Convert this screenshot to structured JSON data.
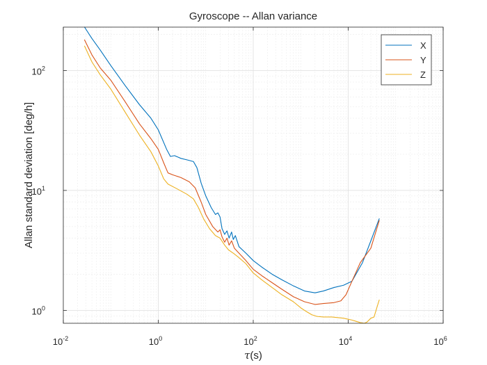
{
  "chart_data": {
    "type": "line",
    "title": "Gyroscope -- Allan variance",
    "xlabel": {
      "symbol": "τ",
      "text": "(s)"
    },
    "ylabel": "Allan standard deviation [deg/h]",
    "xscale": "log",
    "yscale": "log",
    "xlim": [
      0.01,
      1000000
    ],
    "ylim": [
      0.78,
      230
    ],
    "grid": true,
    "minor_grid": true,
    "legend": "top-right",
    "x_ticks": [
      {
        "base": "10",
        "exp": "-2",
        "value": 0.01
      },
      {
        "base": "10",
        "exp": "0",
        "value": 1
      },
      {
        "base": "10",
        "exp": "2",
        "value": 100
      },
      {
        "base": "10",
        "exp": "4",
        "value": 10000
      },
      {
        "base": "10",
        "exp": "6",
        "value": 1000000
      }
    ],
    "y_ticks": [
      {
        "base": "10",
        "exp": "0",
        "value": 1
      },
      {
        "base": "10",
        "exp": "1",
        "value": 10
      },
      {
        "base": "10",
        "exp": "2",
        "value": 100
      }
    ],
    "series": [
      {
        "name": "X",
        "color": "#0072BD",
        "points": [
          [
            0.028,
            230
          ],
          [
            0.04,
            185
          ],
          [
            0.06,
            148
          ],
          [
            0.1,
            110
          ],
          [
            0.2,
            75
          ],
          [
            0.4,
            52
          ],
          [
            0.7,
            40
          ],
          [
            1.0,
            32
          ],
          [
            1.5,
            22
          ],
          [
            1.8,
            19.2
          ],
          [
            2.2,
            19.5
          ],
          [
            3.0,
            18.5
          ],
          [
            4.0,
            18.0
          ],
          [
            5.5,
            17.4
          ],
          [
            6.5,
            15.5
          ],
          [
            8.0,
            11.5
          ],
          [
            10,
            9.0
          ],
          [
            13,
            7.2
          ],
          [
            16,
            6.3
          ],
          [
            18,
            6.5
          ],
          [
            20,
            6.0
          ],
          [
            22,
            4.8
          ],
          [
            25,
            4.3
          ],
          [
            28,
            4.6
          ],
          [
            31,
            4.0
          ],
          [
            35,
            4.5
          ],
          [
            38,
            3.9
          ],
          [
            42,
            4.2
          ],
          [
            50,
            3.4
          ],
          [
            70,
            3.0
          ],
          [
            100,
            2.6
          ],
          [
            150,
            2.3
          ],
          [
            250,
            2.0
          ],
          [
            400,
            1.8
          ],
          [
            700,
            1.6
          ],
          [
            1200,
            1.45
          ],
          [
            2000,
            1.4
          ],
          [
            3000,
            1.45
          ],
          [
            5000,
            1.55
          ],
          [
            8000,
            1.62
          ],
          [
            12000,
            1.75
          ],
          [
            20000,
            2.5
          ],
          [
            30000,
            3.8
          ],
          [
            45000,
            5.8
          ]
        ]
      },
      {
        "name": "Y",
        "color": "#D95319",
        "points": [
          [
            0.028,
            180
          ],
          [
            0.04,
            135
          ],
          [
            0.06,
            105
          ],
          [
            0.1,
            83
          ],
          [
            0.2,
            55
          ],
          [
            0.4,
            36
          ],
          [
            0.7,
            27
          ],
          [
            1.0,
            22
          ],
          [
            1.3,
            17
          ],
          [
            1.6,
            14
          ],
          [
            2.0,
            13.5
          ],
          [
            3.0,
            12.8
          ],
          [
            4.5,
            11.8
          ],
          [
            6.0,
            10.5
          ],
          [
            8.0,
            8.0
          ],
          [
            10,
            6.3
          ],
          [
            14,
            5.0
          ],
          [
            18,
            4.5
          ],
          [
            20,
            4.7
          ],
          [
            22,
            4.1
          ],
          [
            25,
            3.7
          ],
          [
            28,
            4.0
          ],
          [
            31,
            3.5
          ],
          [
            35,
            3.8
          ],
          [
            40,
            3.3
          ],
          [
            50,
            3.0
          ],
          [
            70,
            2.6
          ],
          [
            100,
            2.2
          ],
          [
            150,
            1.95
          ],
          [
            250,
            1.7
          ],
          [
            400,
            1.5
          ],
          [
            700,
            1.3
          ],
          [
            1200,
            1.18
          ],
          [
            2000,
            1.12
          ],
          [
            3000,
            1.14
          ],
          [
            5000,
            1.16
          ],
          [
            7000,
            1.2
          ],
          [
            9000,
            1.35
          ],
          [
            12000,
            1.75
          ],
          [
            18000,
            2.5
          ],
          [
            30000,
            3.3
          ],
          [
            45000,
            5.6
          ]
        ]
      },
      {
        "name": "Z",
        "color": "#EDB120",
        "points": [
          [
            0.028,
            160
          ],
          [
            0.04,
            118
          ],
          [
            0.06,
            92
          ],
          [
            0.1,
            70
          ],
          [
            0.2,
            45
          ],
          [
            0.4,
            29
          ],
          [
            0.7,
            21
          ],
          [
            1.0,
            16
          ],
          [
            1.3,
            12.5
          ],
          [
            1.6,
            11.3
          ],
          [
            2.5,
            10.3
          ],
          [
            4.0,
            9.3
          ],
          [
            5.5,
            8.5
          ],
          [
            7.0,
            7.2
          ],
          [
            9.0,
            5.8
          ],
          [
            12,
            4.8
          ],
          [
            16,
            4.2
          ],
          [
            20,
            4.0
          ],
          [
            25,
            3.5
          ],
          [
            30,
            3.2
          ],
          [
            40,
            2.95
          ],
          [
            50,
            2.75
          ],
          [
            70,
            2.45
          ],
          [
            100,
            2.05
          ],
          [
            150,
            1.8
          ],
          [
            250,
            1.55
          ],
          [
            400,
            1.35
          ],
          [
            700,
            1.18
          ],
          [
            1000,
            1.05
          ],
          [
            1300,
            0.98
          ],
          [
            1700,
            0.92
          ],
          [
            2200,
            0.89
          ],
          [
            3000,
            0.88
          ],
          [
            4500,
            0.88
          ],
          [
            6000,
            0.87
          ],
          [
            8000,
            0.86
          ],
          [
            12000,
            0.83
          ],
          [
            18000,
            0.79
          ],
          [
            22000,
            0.78
          ],
          [
            25000,
            0.8
          ],
          [
            30000,
            0.86
          ],
          [
            35000,
            0.88
          ],
          [
            40000,
            1.05
          ],
          [
            45000,
            1.22
          ]
        ]
      }
    ]
  }
}
